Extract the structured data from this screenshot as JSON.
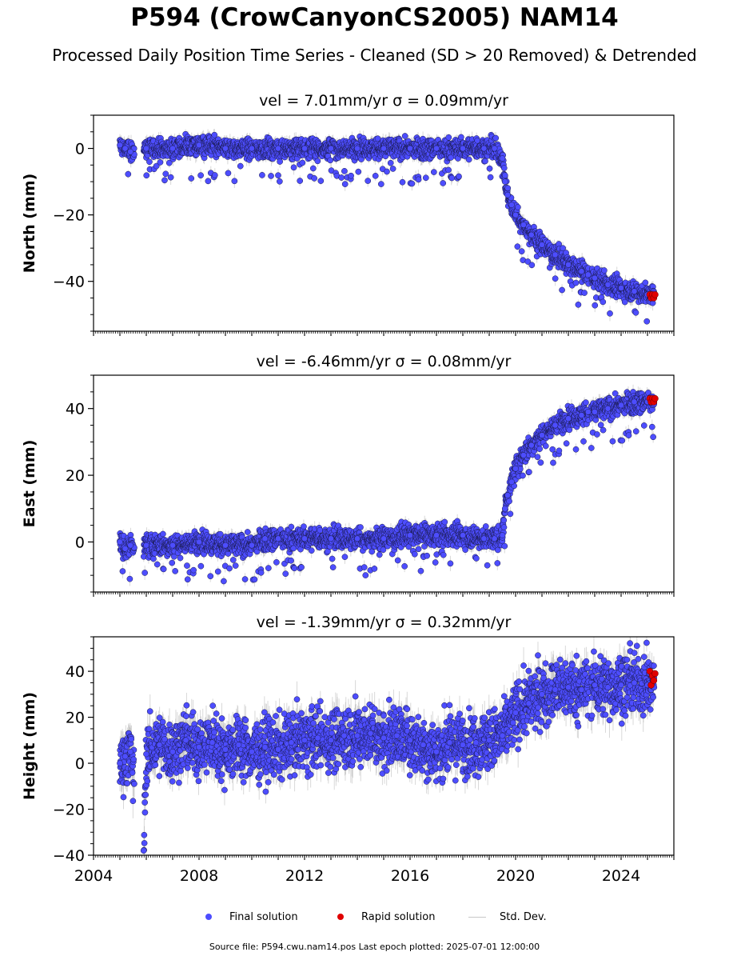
{
  "title": "P594 (CrowCanyonCS2005) NAM14",
  "subtitle": "Processed Daily Position Time Series - Cleaned (SD > 20 Removed) & Detrended",
  "footer": "Source file: P594.cwu.nam14.pos  Last epoch plotted: 2025-07-01 12:00:00",
  "legend": {
    "final_label": "Final solution",
    "rapid_label": "Rapid solution",
    "std_label": "Std. Dev.",
    "position": "bottom-center"
  },
  "colors": {
    "final": "#4d4dff",
    "final_edge": "#1a1a4d",
    "rapid": "#e00000",
    "std_dev": "#b8b8b8"
  },
  "chart_data": [
    {
      "type": "scatter",
      "panel": "north",
      "title": "vel = 7.01mm/yr   σ = 0.09mm/yr",
      "ylabel": "North (mm)",
      "xlabel": "",
      "xlim": [
        2004,
        2026
      ],
      "ylim": [
        -55,
        10
      ],
      "y_major_ticks": [
        0,
        -20,
        -40
      ],
      "y_tick_labels": [
        "0",
        "−20",
        "−40"
      ],
      "x_tick_labels_shown": false,
      "grid": false,
      "series": [
        {
          "name": "Final solution",
          "x": [
            2005.0,
            2005.2,
            2005.4,
            2006.0,
            2007.0,
            2008.0,
            2009.0,
            2010.0,
            2011.0,
            2012.0,
            2013.0,
            2014.0,
            2015.0,
            2016.0,
            2017.0,
            2018.0,
            2018.8,
            2019.2,
            2019.5,
            2019.6,
            2019.7,
            2019.85,
            2020.0,
            2020.3,
            2020.6,
            2021.0,
            2021.5,
            2022.0,
            2022.5,
            2022.75,
            2023.0,
            2023.5,
            2024.0,
            2024.5,
            2025.0,
            2025.25
          ],
          "y": [
            1,
            0,
            -1,
            0,
            0,
            1,
            0,
            0,
            0,
            0,
            0,
            0,
            0,
            0,
            0,
            0,
            0,
            0,
            -3,
            -10,
            -14,
            -17,
            -20,
            -23,
            -26,
            -29,
            -32,
            -35,
            -37,
            -38,
            -39,
            -41,
            -42,
            -43,
            -44,
            -44
          ]
        },
        {
          "name": "Rapid solution",
          "x": [
            2025.3,
            2025.35,
            2025.4,
            2025.45,
            2025.5
          ],
          "y": [
            -44,
            -45,
            -44,
            -45,
            -44
          ]
        }
      ]
    },
    {
      "type": "scatter",
      "panel": "east",
      "title": "vel = -6.46mm/yr   σ = 0.08mm/yr",
      "ylabel": "East (mm)",
      "xlabel": "",
      "xlim": [
        2004,
        2026
      ],
      "ylim": [
        -15,
        50
      ],
      "y_major_ticks": [
        0,
        20,
        40
      ],
      "y_tick_labels": [
        "0",
        "20",
        "40"
      ],
      "x_tick_labels_shown": false,
      "grid": false,
      "series": [
        {
          "name": "Final solution",
          "x": [
            2005.0,
            2005.2,
            2005.4,
            2006.0,
            2007.0,
            2008.0,
            2009.0,
            2010.0,
            2010.5,
            2011.0,
            2012.0,
            2013.0,
            2014.0,
            2015.0,
            2016.0,
            2017.0,
            2018.0,
            2018.8,
            2019.2,
            2019.5,
            2019.6,
            2019.7,
            2019.85,
            2020.0,
            2020.3,
            2020.6,
            2021.0,
            2021.5,
            2022.0,
            2022.5,
            2022.75,
            2023.0,
            2023.5,
            2024.0,
            2024.5,
            2025.0,
            2025.25
          ],
          "y": [
            0,
            -2,
            -1,
            -1,
            -1,
            0,
            -1,
            -1,
            1,
            1,
            1,
            1,
            1,
            1,
            2,
            2,
            2,
            1,
            1,
            2,
            10,
            14,
            18,
            22,
            26,
            29,
            32,
            35,
            37,
            38,
            39,
            39,
            40,
            41,
            42,
            42,
            42
          ]
        },
        {
          "name": "Rapid solution",
          "x": [
            2025.3,
            2025.35,
            2025.4,
            2025.45,
            2025.5
          ],
          "y": [
            43,
            42,
            43,
            42,
            43
          ]
        }
      ]
    },
    {
      "type": "scatter",
      "panel": "height",
      "title": "vel = -1.39mm/yr   σ = 0.32mm/yr",
      "ylabel": "Height (mm)",
      "xlabel": "",
      "xlim": [
        2004,
        2026
      ],
      "ylim": [
        -40,
        55
      ],
      "y_major_ticks": [
        40,
        20,
        0,
        -20,
        -40
      ],
      "y_tick_labels": [
        "40",
        "20",
        "0",
        "−20",
        "−40"
      ],
      "x_major_ticks": [
        2004,
        2008,
        2012,
        2016,
        2020,
        2024
      ],
      "x_tick_labels": [
        "2004",
        "2008",
        "2012",
        "2016",
        "2020",
        "2024"
      ],
      "x_tick_labels_shown": true,
      "grid": false,
      "series": [
        {
          "name": "Final solution",
          "x": [
            2005.0,
            2005.2,
            2005.4,
            2005.9,
            2006.0,
            2006.5,
            2007.0,
            2007.5,
            2008.0,
            2008.5,
            2009.0,
            2009.5,
            2010.0,
            2010.5,
            2011.0,
            2011.5,
            2012.0,
            2012.5,
            2013.0,
            2013.5,
            2014.0,
            2014.5,
            2015.0,
            2015.5,
            2016.0,
            2016.5,
            2017.0,
            2017.5,
            2018.0,
            2018.5,
            2019.0,
            2019.5,
            2020.0,
            2020.5,
            2021.0,
            2021.5,
            2022.0,
            2022.5,
            2023.0,
            2023.5,
            2024.0,
            2024.5,
            2025.0,
            2025.25
          ],
          "y": [
            0,
            3,
            5,
            -38,
            4,
            8,
            5,
            10,
            7,
            9,
            6,
            8,
            5,
            7,
            6,
            9,
            10,
            11,
            10,
            12,
            12,
            13,
            11,
            12,
            10,
            8,
            5,
            9,
            8,
            9,
            10,
            12,
            22,
            26,
            30,
            32,
            33,
            32,
            34,
            33,
            34,
            35,
            34,
            33
          ]
        },
        {
          "name": "Rapid solution",
          "x": [
            2025.3,
            2025.35,
            2025.4,
            2025.45,
            2025.5
          ],
          "y": [
            40,
            34,
            38,
            36,
            39
          ]
        }
      ]
    }
  ]
}
